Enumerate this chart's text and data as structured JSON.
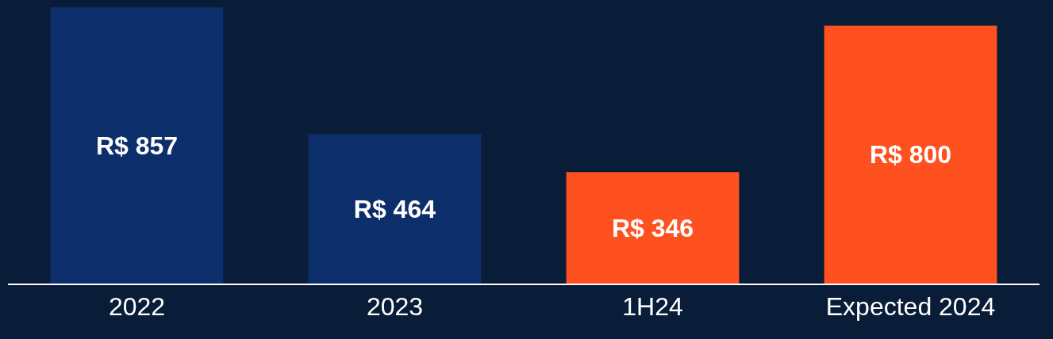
{
  "chart_data": {
    "type": "bar",
    "categories": [
      "2022",
      "2023",
      "1H24",
      "Expected 2024"
    ],
    "values": [
      857,
      464,
      346,
      800
    ],
    "colors": [
      "#0c2f6b",
      "#0c2f6b",
      "#ff5020",
      "#ff5020"
    ],
    "value_labels": [
      "R$ 857",
      "R$ 464",
      "R$ 346",
      "R$ 800"
    ],
    "ylim": [
      0,
      880
    ],
    "tick_labels": "x",
    "grid": false,
    "legend": false
  }
}
